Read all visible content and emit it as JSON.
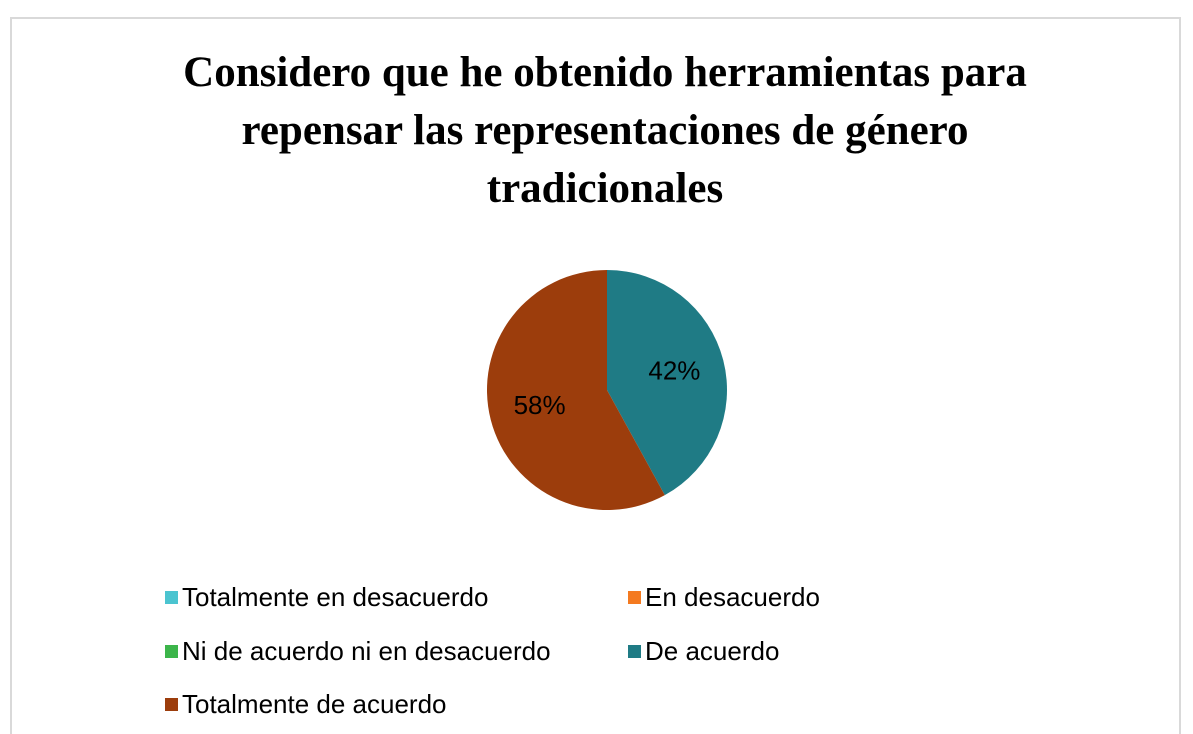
{
  "chart_data": {
    "type": "pie",
    "title": "Considero que he obtenido herramientas para repensar las representaciones de género tradicionales",
    "categories": [
      "Totalmente en desacuerdo",
      "En desacuerdo",
      "Ni de acuerdo ni en desacuerdo",
      "De acuerdo",
      "Totalmente de acuerdo"
    ],
    "values": [
      0,
      0,
      0,
      42,
      58
    ],
    "value_labels": [
      null,
      null,
      null,
      "42%",
      "58%"
    ],
    "colors": [
      "#4bc4d0",
      "#f47a20",
      "#3cb54a",
      "#1f7b85",
      "#9c3d0c"
    ],
    "legend": "bottom"
  }
}
